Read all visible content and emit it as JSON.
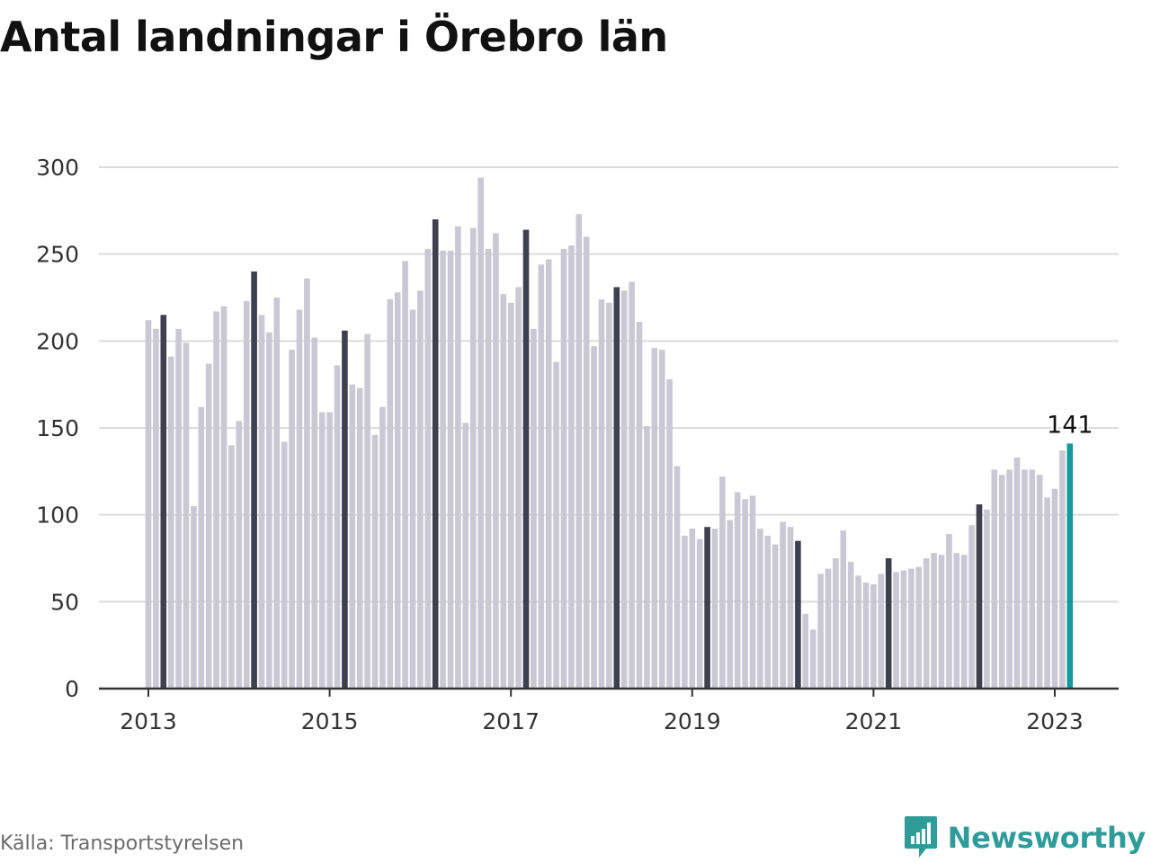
{
  "title": "Antal landningar i Örebro län",
  "source": "Källa: Transportstyrelsen",
  "brand": "Newsworthy",
  "colors": {
    "bar": "#c9c8d4",
    "march_bar": "#3f3f4f",
    "latest_bar": "#17989a",
    "grid": "#dcdcdc",
    "axis": "#333333",
    "brand": "#2f9c9a"
  },
  "chart_data": {
    "type": "bar",
    "title": "Antal landningar i Örebro län",
    "xlabel": "",
    "ylabel": "",
    "ylim": [
      0,
      300
    ],
    "yticks": [
      0,
      50,
      100,
      150,
      200,
      250,
      300
    ],
    "xticks": [
      "2013",
      "2015",
      "2017",
      "2019",
      "2021",
      "2023"
    ],
    "grid": true,
    "legend": "none",
    "start": "2013-01",
    "categories": [
      "2013-01",
      "2013-02",
      "2013-03",
      "2013-04",
      "2013-05",
      "2013-06",
      "2013-07",
      "2013-08",
      "2013-09",
      "2013-10",
      "2013-11",
      "2013-12",
      "2014-01",
      "2014-02",
      "2014-03",
      "2014-04",
      "2014-05",
      "2014-06",
      "2014-07",
      "2014-08",
      "2014-09",
      "2014-10",
      "2014-11",
      "2014-12",
      "2015-01",
      "2015-02",
      "2015-03",
      "2015-04",
      "2015-05",
      "2015-06",
      "2015-07",
      "2015-08",
      "2015-09",
      "2015-10",
      "2015-11",
      "2015-12",
      "2016-01",
      "2016-02",
      "2016-03",
      "2016-04",
      "2016-05",
      "2016-06",
      "2016-07",
      "2016-08",
      "2016-09",
      "2016-10",
      "2016-11",
      "2016-12",
      "2017-01",
      "2017-02",
      "2017-03",
      "2017-04",
      "2017-05",
      "2017-06",
      "2017-07",
      "2017-08",
      "2017-09",
      "2017-10",
      "2017-11",
      "2017-12",
      "2018-01",
      "2018-02",
      "2018-03",
      "2018-04",
      "2018-05",
      "2018-06",
      "2018-07",
      "2018-08",
      "2018-09",
      "2018-10",
      "2018-11",
      "2018-12",
      "2019-01",
      "2019-02",
      "2019-03",
      "2019-04",
      "2019-05",
      "2019-06",
      "2019-07",
      "2019-08",
      "2019-09",
      "2019-10",
      "2019-11",
      "2019-12",
      "2020-01",
      "2020-02",
      "2020-03",
      "2020-04",
      "2020-05",
      "2020-06",
      "2020-07",
      "2020-08",
      "2020-09",
      "2020-10",
      "2020-11",
      "2020-12",
      "2021-01",
      "2021-02",
      "2021-03",
      "2021-04",
      "2021-05",
      "2021-06",
      "2021-07",
      "2021-08",
      "2021-09",
      "2021-10",
      "2021-11",
      "2021-12",
      "2022-01",
      "2022-02",
      "2022-03",
      "2022-04",
      "2022-05",
      "2022-06",
      "2022-07",
      "2022-08",
      "2022-09",
      "2022-10",
      "2022-11",
      "2022-12",
      "2023-01",
      "2023-02",
      "2023-03"
    ],
    "values": [
      212,
      207,
      215,
      191,
      207,
      199,
      105,
      162,
      187,
      217,
      220,
      140,
      154,
      223,
      240,
      215,
      205,
      225,
      142,
      195,
      218,
      236,
      202,
      159,
      159,
      186,
      206,
      175,
      173,
      204,
      146,
      162,
      224,
      228,
      246,
      218,
      229,
      253,
      270,
      252,
      252,
      266,
      153,
      265,
      294,
      253,
      262,
      227,
      222,
      231,
      264,
      207,
      244,
      247,
      188,
      253,
      255,
      273,
      260,
      197,
      224,
      222,
      231,
      229,
      234,
      211,
      151,
      196,
      195,
      178,
      128,
      88,
      92,
      86,
      93,
      92,
      122,
      97,
      113,
      109,
      111,
      92,
      88,
      83,
      96,
      93,
      85,
      43,
      34,
      66,
      69,
      75,
      91,
      73,
      65,
      61,
      60,
      66,
      75,
      67,
      68,
      69,
      70,
      75,
      78,
      77,
      89,
      78,
      77,
      94,
      106,
      103,
      126,
      123,
      126,
      133,
      126,
      126,
      123,
      110,
      115,
      137,
      141
    ],
    "highlight": {
      "month": "03",
      "color_key": "march_bar"
    },
    "latest": {
      "index": 122,
      "label": "141"
    }
  }
}
